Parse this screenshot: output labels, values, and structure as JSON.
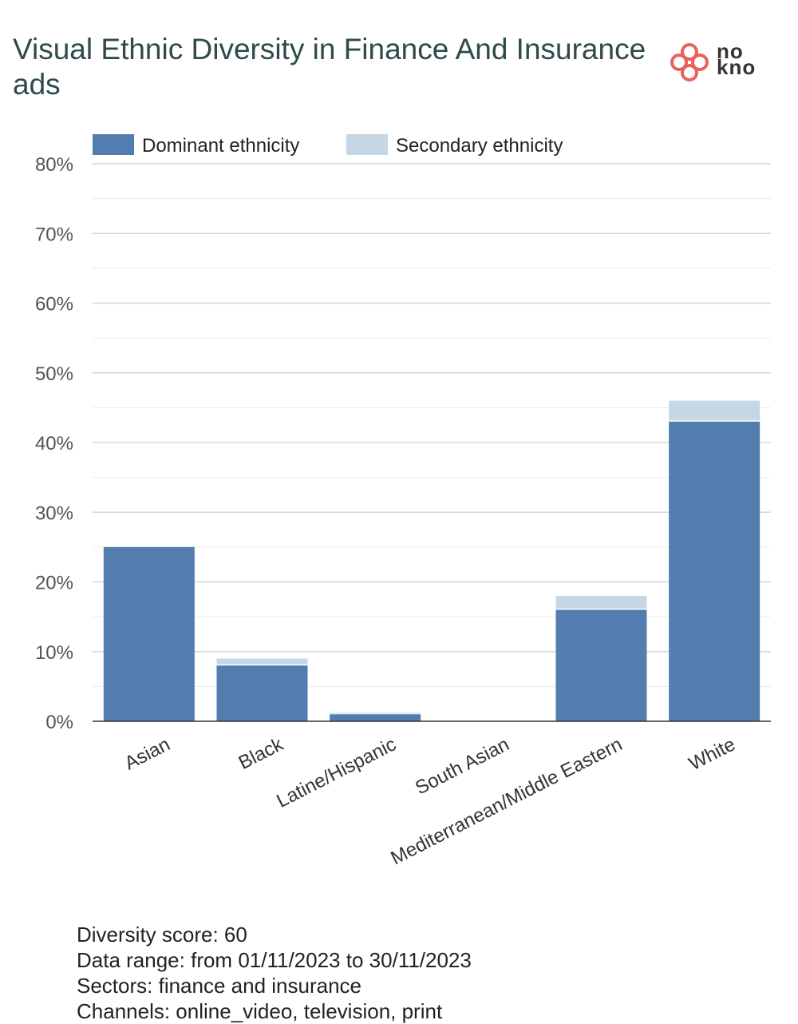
{
  "title": "Visual Ethnic Diversity in Finance And Insurance ads",
  "logo": {
    "line1": "no",
    "line2": "kno",
    "icon": "clover-logo-icon",
    "color": "#e8625a"
  },
  "colors": {
    "dominant": "#527daf",
    "secondary": "#c5d6e5",
    "grid": "#dddddd",
    "axis": "#333333"
  },
  "chart_data": {
    "type": "bar",
    "stacked": true,
    "title": "Visual Ethnic Diversity in Finance And Insurance ads",
    "categories": [
      "Asian",
      "Black",
      "Latine/Hispanic",
      "South Asian",
      "Mediterranean/Middle Eastern",
      "White"
    ],
    "series": [
      {
        "name": "Dominant ethnicity",
        "values": [
          25,
          8,
          1,
          0,
          16,
          43
        ]
      },
      {
        "name": "Secondary ethnicity",
        "values": [
          0,
          1,
          0.2,
          0,
          2,
          3
        ]
      }
    ],
    "ylim": [
      0,
      80
    ],
    "yticks": [
      0,
      10,
      20,
      30,
      40,
      50,
      60,
      70,
      80
    ],
    "ytick_labels": [
      "0%",
      "10%",
      "20%",
      "30%",
      "40%",
      "50%",
      "60%",
      "70%",
      "80%"
    ],
    "xlabel": "",
    "ylabel": "",
    "grid": true,
    "legend": "top-left"
  },
  "footer": {
    "diversity": "Diversity score: 60",
    "range": "Data range: from 01/11/2023 to 30/11/2023",
    "sectors": "Sectors: finance and insurance",
    "channels": "Channels: online_video, television, print"
  }
}
